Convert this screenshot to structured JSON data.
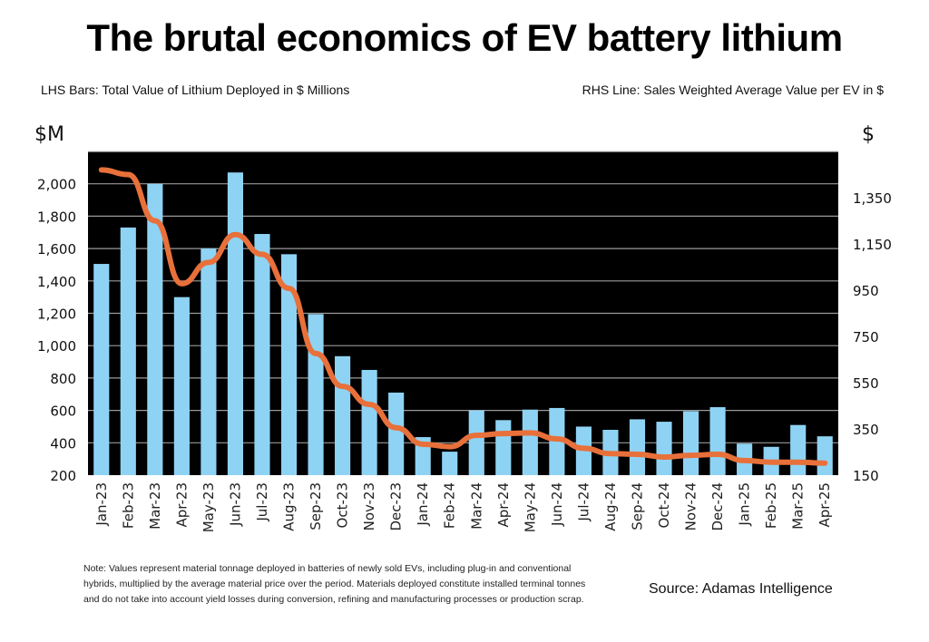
{
  "header": {
    "title": "The brutal economics of EV battery lithium",
    "subtitle_left": "LHS Bars: Total Value of Lithium Deployed in $ Millions",
    "subtitle_right": "RHS Line: Sales Weighted Average Value per EV in $",
    "unit_left": "$M",
    "unit_right": "$"
  },
  "footer": {
    "note": "Note: Values represent material tonnage deployed in batteries of newly sold EVs, including plug-in and conventional hybrids, multiplied by the average material price over the period. Materials deployed constitute installed terminal tonnes and do not take into account yield losses during conversion, refining and manufacturing processes or production scrap.",
    "source": "Source: Adamas Intelligence"
  },
  "colors": {
    "bar": "#8fd3f4",
    "line": "#e8703a",
    "plot_bg": "#000000",
    "grid": "#9a9a9a"
  },
  "chart_data": {
    "type": "bar",
    "title": "The brutal economics of EV battery lithium",
    "categories": [
      "Jan-23",
      "Feb-23",
      "Mar-23",
      "Apr-23",
      "May-23",
      "Jun-23",
      "Jul-23",
      "Aug-23",
      "Sep-23",
      "Oct-23",
      "Nov-23",
      "Dec-23",
      "Jan-24",
      "Feb-24",
      "Mar-24",
      "Apr-24",
      "May-24",
      "Jun-24",
      "Jul-24",
      "Aug-24",
      "Sep-24",
      "Oct-24",
      "Nov-24",
      "Dec-24",
      "Jan-25",
      "Feb-25",
      "Mar-25",
      "Apr-25"
    ],
    "series": [
      {
        "name": "Total Value of Lithium Deployed ($ Millions)",
        "type": "bar",
        "axis": "left",
        "values": [
          1505,
          1730,
          2000,
          1300,
          1600,
          2070,
          1690,
          1565,
          1195,
          935,
          850,
          710,
          435,
          345,
          600,
          540,
          605,
          615,
          500,
          480,
          545,
          530,
          595,
          620,
          395,
          375,
          510,
          440
        ]
      },
      {
        "name": "Sales Weighted Average Value per EV ($)",
        "type": "line",
        "axis": "right",
        "values": [
          1470,
          1450,
          1250,
          978,
          1070,
          1190,
          1105,
          958,
          676,
          534,
          456,
          355,
          284,
          273,
          322,
          330,
          333,
          307,
          266,
          243,
          240,
          228,
          236,
          240,
          213,
          206,
          206,
          202
        ]
      }
    ],
    "left_axis": {
      "label": "$M",
      "ylim": [
        200,
        2200
      ],
      "ticks": [
        200,
        400,
        600,
        800,
        1000,
        1200,
        1400,
        1600,
        1800,
        2000
      ],
      "tick_labels": [
        "200",
        "400",
        "600",
        "800",
        "1,000",
        "1,200",
        "1,400",
        "1,600",
        "1,800",
        "2,000"
      ]
    },
    "right_axis": {
      "label": "$",
      "ylim": [
        150,
        1550
      ],
      "ticks": [
        150,
        350,
        550,
        750,
        950,
        1150,
        1350
      ],
      "tick_labels": [
        "150",
        "350",
        "550",
        "750",
        "950",
        "1,150",
        "1,350"
      ]
    },
    "grid": true,
    "legend": "none"
  }
}
